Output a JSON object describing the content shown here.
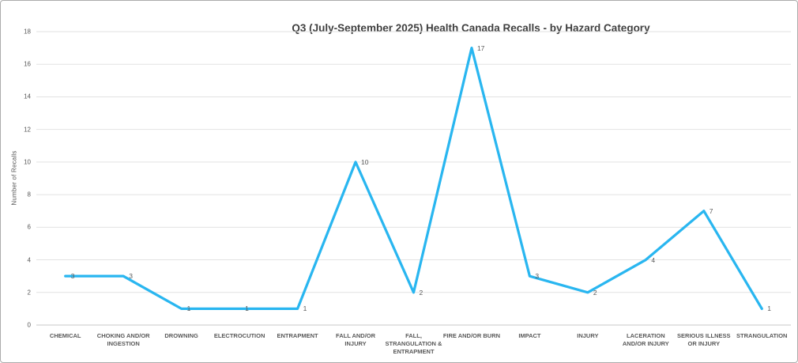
{
  "chart_data": {
    "type": "line",
    "title": "Q3 (July-September 2025) Health Canada Recalls - by Hazard Category",
    "xlabel": "",
    "ylabel": "Number of Recalls",
    "categories": [
      "CHEMICAL",
      "CHOKING AND/OR INGESTION",
      "DROWNING",
      "ELECTROCUTION",
      "ENTRAPMENT",
      "FALL AND/OR INJURY",
      "FALL, STRANGULATION & ENTRAPMENT",
      "FIRE AND/OR BURN",
      "IMPACT",
      "INJURY",
      "LACERATION AND/OR INJURY",
      "SERIOUS ILLNESS OR INJURY",
      "STRANGULATION"
    ],
    "categories_display": [
      "CHEMICAL",
      "CHOKING AND/OR\nINGESTION",
      "DROWNING",
      "ELECTROCUTION",
      "ENTRAPMENT",
      "FALL AND/OR\nINJURY",
      "FALL,\nSTRANGULATION &\nENTRAPMENT",
      "FIRE AND/OR BURN",
      "IMPACT",
      "INJURY",
      "LACERATION\nAND/OR INJURY",
      "SERIOUS ILLNESS\nOR INJURY",
      "STRANGULATION"
    ],
    "values": [
      3,
      3,
      1,
      1,
      1,
      10,
      2,
      17,
      3,
      2,
      4,
      7,
      1
    ],
    "yticks": [
      0,
      2,
      4,
      6,
      8,
      10,
      12,
      14,
      16,
      18
    ],
    "ylim": [
      0,
      18
    ],
    "grid": true,
    "legend": "none",
    "data_labels": true,
    "line_color": "#29b6f0",
    "gridline_color": "#e2e2e2",
    "axis_line_color": "#c9c9c9",
    "label_color": "#595959",
    "title_color": "#3f3f3f",
    "frame_border_color": "#ababab"
  }
}
